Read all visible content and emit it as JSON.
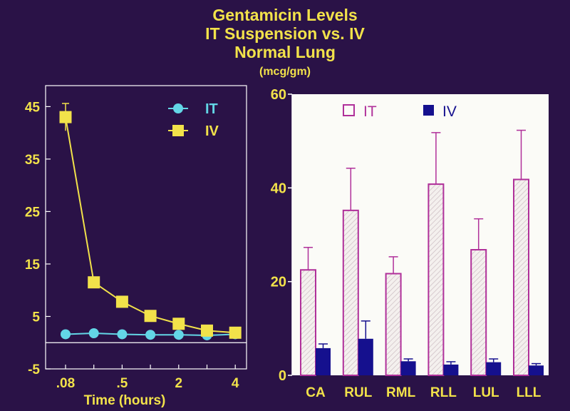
{
  "title": {
    "line1": "Gentamicin  Levels",
    "line2": "IT Suspension vs. IV",
    "line3": "Normal Lung",
    "units": "(mcg/gm)"
  },
  "colors": {
    "background": "#2a1247",
    "text": "#f2e24a",
    "it_line": "#63d6e6",
    "iv_line": "#f2e24a",
    "bar_it": "#b0309a",
    "bar_iv": "#15108e",
    "bar_panel": "#fbfbf7"
  },
  "chart_data": [
    {
      "type": "line",
      "xlabel": "Time (hours)",
      "ylabel": "",
      "categories": [
        ".08",
        "",
        ".5",
        "",
        "2",
        "",
        "4"
      ],
      "x_tick_labels": [
        ".08",
        ".5",
        "2",
        "4"
      ],
      "y_ticks": [
        45,
        35,
        25,
        15,
        5,
        -5
      ],
      "ylim": [
        -5,
        49
      ],
      "legend_placement": "top-right",
      "series": [
        {
          "name": "IT",
          "marker": "circle",
          "values": [
            1.6,
            1.8,
            1.6,
            1.5,
            1.5,
            1.4,
            1.6
          ],
          "error": [
            0,
            0,
            0,
            0,
            0,
            0,
            0
          ]
        },
        {
          "name": "IV",
          "marker": "square",
          "values": [
            43,
            11.5,
            7.8,
            5.1,
            3.6,
            2.3,
            1.9
          ],
          "error": [
            2.6,
            0,
            0,
            0,
            0,
            0,
            0
          ]
        }
      ]
    },
    {
      "type": "bar",
      "categories": [
        "CA",
        "RUL",
        "RML",
        "RLL",
        "LUL",
        "LLL"
      ],
      "y_ticks": [
        60,
        40,
        20,
        0
      ],
      "ylim": [
        0,
        60
      ],
      "legend_placement": "top",
      "series": [
        {
          "name": "IT",
          "values": [
            22.5,
            35.2,
            21.7,
            40.8,
            26.8,
            41.8
          ],
          "error": [
            4.8,
            9,
            3.6,
            11,
            6.6,
            10.5
          ]
        },
        {
          "name": "IV",
          "values": [
            5.8,
            7.8,
            3.0,
            2.3,
            2.8,
            2.1
          ],
          "error": [
            0.9,
            3.8,
            0.5,
            0.6,
            0.7,
            0.4
          ]
        }
      ]
    }
  ]
}
